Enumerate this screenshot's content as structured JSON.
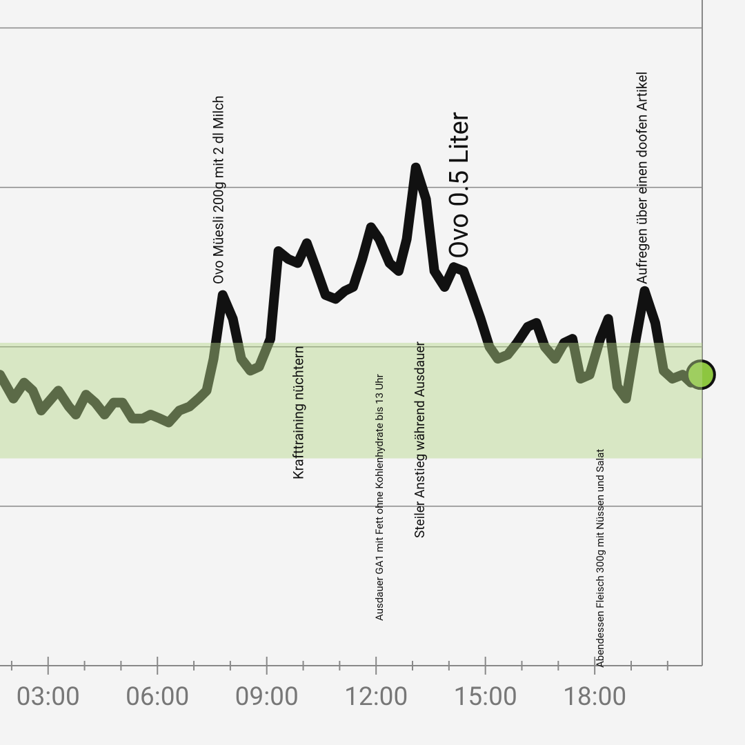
{
  "chart_data": {
    "type": "line",
    "x": [
      1.68,
      2.05,
      2.34,
      2.58,
      2.81,
      3.28,
      3.57,
      3.76,
      4.04,
      4.29,
      4.55,
      4.8,
      5.04,
      5.31,
      5.6,
      5.81,
      6.07,
      6.31,
      6.6,
      6.88,
      7.13,
      7.35,
      7.54,
      7.79,
      8.07,
      8.3,
      8.55,
      8.79,
      9.1,
      9.32,
      9.59,
      9.85,
      10.1,
      10.34,
      10.61,
      10.89,
      11.14,
      11.37,
      11.62,
      11.86,
      12.09,
      12.37,
      12.62,
      12.84,
      13.09,
      13.37,
      13.6,
      13.88,
      14.13,
      14.4,
      14.64,
      14.87,
      15.11,
      15.34,
      15.61,
      15.87,
      16.16,
      16.4,
      16.63,
      16.91,
      17.16,
      17.39,
      17.61,
      17.86,
      18.15,
      18.37,
      18.62,
      18.86,
      19.13,
      19.37,
      19.66,
      19.89,
      20.13,
      20.41,
      20.64,
      20.91
    ],
    "series": [
      {
        "color": "#111111",
        "values": [
          7.3,
          6.7,
          7.1,
          6.9,
          6.4,
          6.9,
          6.5,
          6.3,
          6.8,
          6.6,
          6.3,
          6.6,
          6.6,
          6.2,
          6.2,
          6.3,
          6.2,
          6.1,
          6.4,
          6.5,
          6.7,
          6.9,
          7.7,
          9.3,
          8.7,
          7.7,
          7.4,
          7.5,
          8.2,
          10.4,
          10.2,
          10.1,
          10.6,
          10.0,
          9.3,
          9.2,
          9.4,
          9.5,
          10.2,
          11.0,
          10.7,
          10.1,
          9.9,
          10.7,
          12.5,
          11.7,
          9.9,
          9.5,
          10.0,
          9.9,
          9.3,
          8.7,
          8.0,
          7.7,
          7.8,
          8.1,
          8.5,
          8.6,
          8.0,
          7.7,
          8.1,
          8.2,
          7.2,
          7.3,
          8.2,
          8.7,
          7.0,
          6.7,
          8.2,
          9.4,
          8.6,
          7.4,
          7.2,
          7.3,
          7.1,
          7.3
        ]
      }
    ],
    "current_marker_color": "#8dc63f",
    "target_range": [
      5.2,
      8.1
    ],
    "target_color": "#b5d88a",
    "xlim": [
      1.68,
      20.95
    ],
    "ylim": [
      0,
      16.7
    ],
    "xticks": [
      {
        "value": 3,
        "label": "03:00"
      },
      {
        "value": 6,
        "label": "06:00"
      },
      {
        "value": 9,
        "label": "09:00"
      },
      {
        "value": 12,
        "label": "12:00"
      },
      {
        "value": 15,
        "label": "15:00"
      },
      {
        "value": 18,
        "label": "18:00"
      }
    ],
    "minor_xticks": [
      2,
      4,
      5,
      7,
      8,
      10,
      11,
      13,
      14,
      16,
      17,
      19,
      20
    ],
    "yticks": [
      4,
      8,
      12,
      16
    ],
    "grid": true,
    "annotations": [
      "Ovo Müesli 200g mit 2 dl Milch",
      "Krafttraining nüchtern",
      "Ausdauer GA1 mit Fett ohne Kohlenhydrate bis 13 Uhr",
      "Steiler Anstieg während Ausdauer",
      "Ovo 0.5 Liter",
      "Abendessen Fleisch 300g mit Nüssen und Salat",
      "Aufregen über einen doofen Artikel"
    ]
  }
}
